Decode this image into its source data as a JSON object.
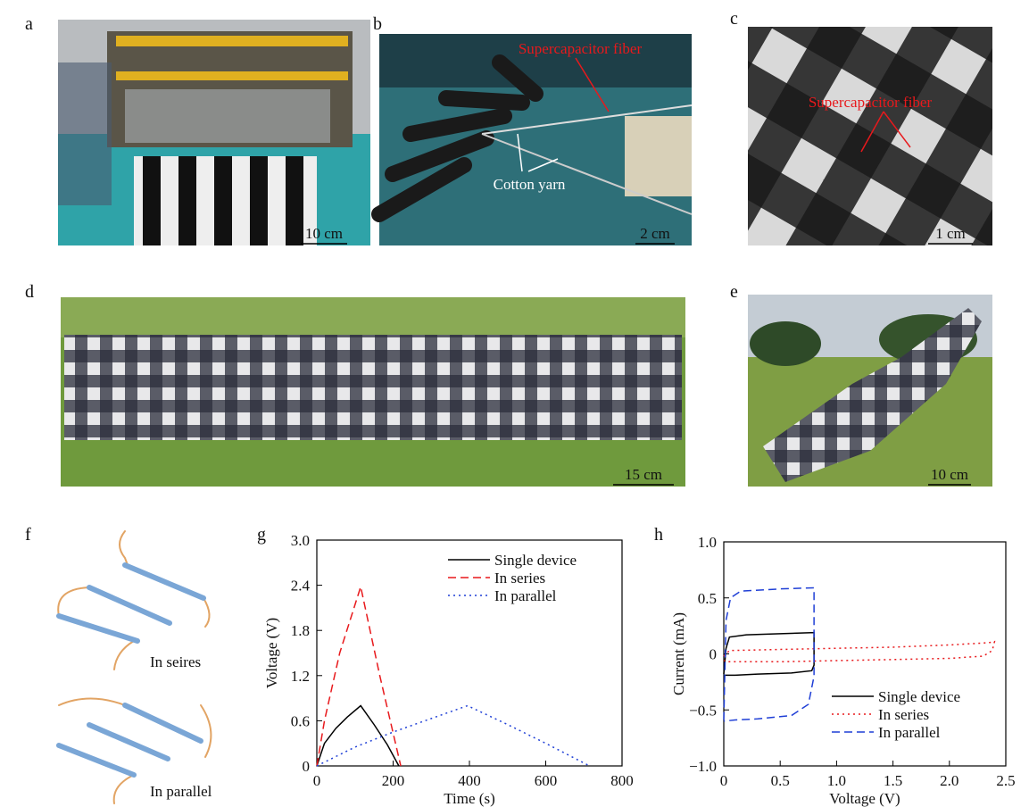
{
  "panels": {
    "a": {
      "label": "a",
      "scale_bar": "10 cm"
    },
    "b": {
      "label": "b",
      "annotation_fiber": "Supercapacitor fiber",
      "annotation_yarn": "Cotton yarn",
      "scale_bar": "2 cm"
    },
    "c": {
      "label": "c",
      "annotation_fiber": "Supercapacitor fiber",
      "scale_bar": "1 cm"
    },
    "d": {
      "label": "d",
      "scale_bar": "15 cm"
    },
    "e": {
      "label": "e",
      "scale_bar": "10 cm"
    },
    "f": {
      "label": "f",
      "series_text": "In seires",
      "parallel_text": "In parallel"
    },
    "g": {
      "label": "g"
    },
    "h": {
      "label": "h"
    }
  },
  "chart_data": [
    {
      "type": "line",
      "x_label": "Time (s)",
      "y_label": "Voltage (V)",
      "xlim": [
        0,
        800
      ],
      "xticks": [
        0,
        200,
        400,
        600,
        800
      ],
      "ylim": [
        0,
        3
      ],
      "yticks": [
        0,
        0.6,
        1.2,
        1.8,
        2.4,
        {
          "value": 3,
          "label": "3.0"
        }
      ],
      "legend": "upper right",
      "series": [
        {
          "name": "Single device",
          "color": "#000000",
          "dash": "solid",
          "x": [
            0,
            20,
            50,
            80,
            115,
            150,
            185,
            215
          ],
          "values": [
            0,
            0.3,
            0.5,
            0.65,
            0.8,
            0.55,
            0.28,
            0
          ]
        },
        {
          "name": "In series",
          "color": "#e8191c",
          "dash": "dashed",
          "x": [
            0,
            20,
            60,
            115,
            165,
            220
          ],
          "values": [
            0,
            0.6,
            1.5,
            2.38,
            1.2,
            0
          ]
        },
        {
          "name": "In parallel",
          "color": "#1f3fd6",
          "dash": "dotted",
          "x": [
            0,
            100,
            200,
            300,
            395,
            500,
            600,
            715
          ],
          "values": [
            0,
            0.25,
            0.45,
            0.63,
            0.8,
            0.55,
            0.3,
            0
          ]
        }
      ]
    },
    {
      "type": "line",
      "x_label": "Voltage (V)",
      "y_label": "Current (mA)",
      "xlim": [
        0,
        2.5
      ],
      "xticks": [
        0,
        0.5,
        {
          "value": 1,
          "label": "1.0"
        },
        1.5,
        {
          "value": 2,
          "label": "2.0"
        },
        2.5
      ],
      "ylim": [
        -1,
        1
      ],
      "yticks": [
        {
          "value": -1,
          "label": "−1.0"
        },
        {
          "value": -0.5,
          "label": "−0.5"
        },
        0,
        0.5,
        {
          "value": 1,
          "label": "1.0"
        }
      ],
      "legend": "lower right",
      "series": [
        {
          "name": "Single device",
          "color": "#000000",
          "dash": "solid",
          "x": [
            0,
            0.02,
            0.05,
            0.2,
            0.5,
            0.8,
            0.8,
            0.78,
            0.6,
            0.3,
            0.1,
            0
          ],
          "values": [
            -0.18,
            0.05,
            0.15,
            0.17,
            0.18,
            0.19,
            -0.1,
            -0.15,
            -0.17,
            -0.18,
            -0.19,
            -0.19
          ]
        },
        {
          "name": "In series",
          "color": "#e8191c",
          "dash": "dotted",
          "x": [
            0,
            0.05,
            0.5,
            1,
            1.5,
            2,
            2.35,
            2.4,
            2.38,
            2.3,
            2,
            1.5,
            1,
            0.5,
            0.05,
            0
          ],
          "values": [
            -0.02,
            0.03,
            0.04,
            0.05,
            0.06,
            0.08,
            0.1,
            0.11,
            0.03,
            -0.02,
            -0.04,
            -0.05,
            -0.06,
            -0.07,
            -0.07,
            -0.06
          ]
        },
        {
          "name": "In parallel",
          "color": "#1f3fd6",
          "dash": "dashed",
          "x": [
            0,
            0.02,
            0.06,
            0.15,
            0.5,
            0.8,
            0.8,
            0.75,
            0.6,
            0.3,
            0.1,
            0
          ],
          "values": [
            -0.59,
            0.3,
            0.5,
            0.56,
            0.58,
            0.59,
            -0.2,
            -0.45,
            -0.55,
            -0.58,
            -0.59,
            -0.6
          ]
        }
      ]
    }
  ]
}
